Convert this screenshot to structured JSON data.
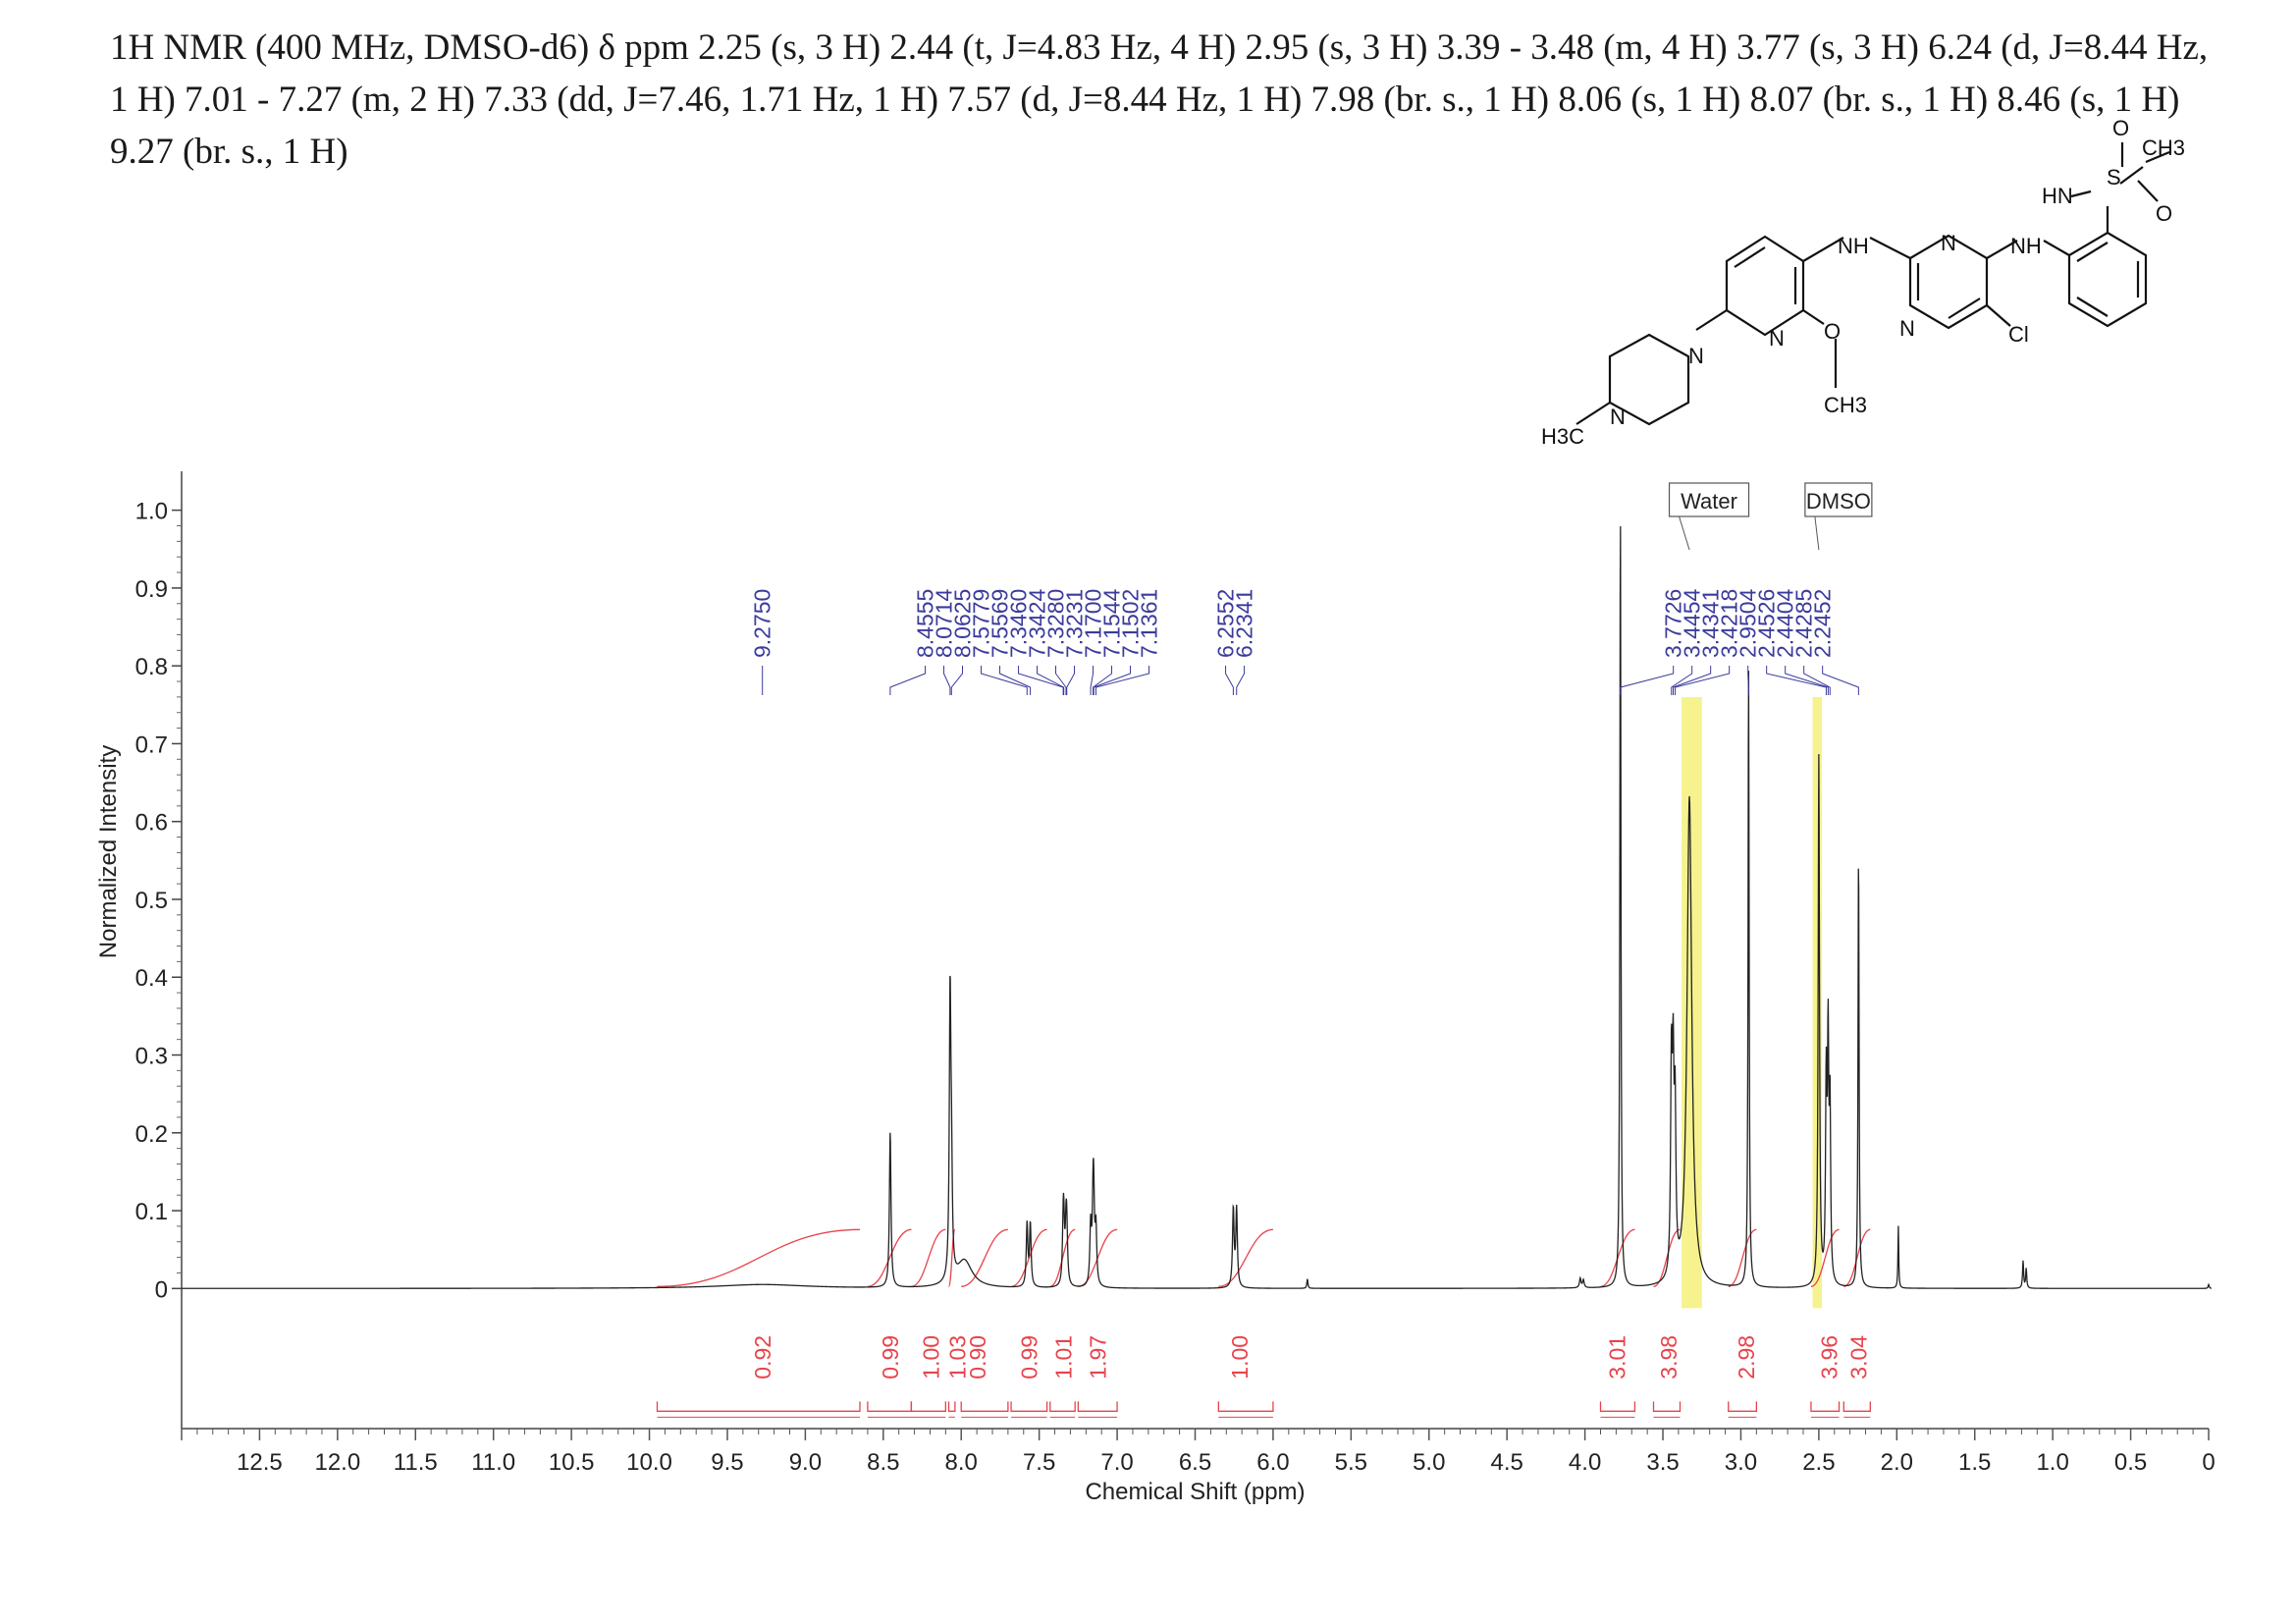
{
  "header": {
    "text": "1H NMR (400 MHz, DMSO-d6) δ ppm 2.25 (s, 3 H) 2.44 (t, J=4.83 Hz, 4 H) 2.95 (s, 3 H) 3.39 - 3.48 (m, 4 H) 3.77 (s, 3 H) 6.24 (d, J=8.44 Hz, 1 H) 7.01 - 7.27 (m, 2 H) 7.33 (dd, J=7.46, 1.71 Hz, 1 H) 7.57 (d, J=8.44 Hz, 1 H) 7.98 (br. s., 1 H) 8.06 (s, 1 H) 8.07 (br. s., 1 H) 8.46 (s, 1 H) 9.27 (br. s., 1 H)"
  },
  "molecule": {
    "labels": [
      "CH3",
      "O",
      "S",
      "O",
      "HN",
      "NH",
      "NH",
      "N",
      "N",
      "N",
      "N",
      "O",
      "CH3",
      "Cl",
      "N",
      "H3C"
    ]
  },
  "colors": {
    "spectrum": "#222222",
    "peak_labels": "#3b3b9c",
    "integrals": "#e8434b",
    "solvent_highlight": "#f5f07a",
    "axis": "#444444"
  },
  "chart_data": {
    "type": "line",
    "xlabel": "Chemical Shift (ppm)",
    "ylabel": "Normalized Intensity",
    "xlim": [
      13.0,
      0
    ],
    "ylim": [
      -0.18,
      1.05
    ],
    "x_ticks": [
      12.5,
      12.0,
      11.5,
      11.0,
      10.5,
      10.0,
      9.5,
      9.0,
      8.5,
      8.0,
      7.5,
      7.0,
      6.5,
      6.0,
      5.5,
      5.0,
      4.5,
      4.0,
      3.5,
      3.0,
      2.5,
      2.0,
      1.5,
      1.0,
      0.5,
      0
    ],
    "x_tick_labels": [
      "12.5",
      "12.0",
      "11.5",
      "11.0",
      "10.5",
      "10.0",
      "9.5",
      "9.0",
      "8.5",
      "8.0",
      "7.5",
      "7.0",
      "6.5",
      "6.0",
      "5.5",
      "5.0",
      "4.5",
      "4.0",
      "3.5",
      "3.0",
      "2.5",
      "2.0",
      "1.5",
      "1.0",
      "0.5",
      "0"
    ],
    "y_ticks": [
      0,
      0.1,
      0.2,
      0.3,
      0.4,
      0.5,
      0.6,
      0.7,
      0.8,
      0.9,
      1.0
    ],
    "y_tick_labels": [
      "0",
      "0.1",
      "0.2",
      "0.3",
      "0.4",
      "0.5",
      "0.6",
      "0.7",
      "0.8",
      "0.9",
      "1.0"
    ],
    "peaks": [
      {
        "ppm": 9.275,
        "height": 0.005,
        "width": 0.35
      },
      {
        "ppm": 8.4555,
        "height": 0.2,
        "width": 0.006
      },
      {
        "ppm": 8.0714,
        "height": 0.36,
        "width": 0.006
      },
      {
        "ppm": 8.0625,
        "height": 0.12,
        "width": 0.006
      },
      {
        "ppm": 7.98,
        "height": 0.035,
        "width": 0.06
      },
      {
        "ppm": 7.5779,
        "height": 0.08,
        "width": 0.006
      },
      {
        "ppm": 7.5569,
        "height": 0.08,
        "width": 0.006
      },
      {
        "ppm": 7.346,
        "height": 0.06,
        "width": 0.006
      },
      {
        "ppm": 7.3424,
        "height": 0.06,
        "width": 0.006
      },
      {
        "ppm": 7.328,
        "height": 0.06,
        "width": 0.006
      },
      {
        "ppm": 7.3231,
        "height": 0.06,
        "width": 0.006
      },
      {
        "ppm": 7.17,
        "height": 0.075,
        "width": 0.006
      },
      {
        "ppm": 7.1544,
        "height": 0.09,
        "width": 0.006
      },
      {
        "ppm": 7.1502,
        "height": 0.08,
        "width": 0.006
      },
      {
        "ppm": 7.1361,
        "height": 0.07,
        "width": 0.006
      },
      {
        "ppm": 6.2552,
        "height": 0.1,
        "width": 0.006
      },
      {
        "ppm": 6.2341,
        "height": 0.1,
        "width": 0.006
      },
      {
        "ppm": 5.78,
        "height": 0.012,
        "width": 0.004
      },
      {
        "ppm": 4.03,
        "height": 0.012,
        "width": 0.006
      },
      {
        "ppm": 4.01,
        "height": 0.01,
        "width": 0.006
      },
      {
        "ppm": 3.7726,
        "height": 1.0,
        "width": 0.004
      },
      {
        "ppm": 3.4454,
        "height": 0.26,
        "width": 0.006
      },
      {
        "ppm": 3.4341,
        "height": 0.24,
        "width": 0.006
      },
      {
        "ppm": 3.4218,
        "height": 0.2,
        "width": 0.006
      },
      {
        "ppm": 3.33,
        "height": 0.63,
        "width": 0.018
      },
      {
        "ppm": 2.9504,
        "height": 0.8,
        "width": 0.004
      },
      {
        "ppm": 2.5,
        "height": 0.68,
        "width": 0.005
      },
      {
        "ppm": 2.4526,
        "height": 0.25,
        "width": 0.005
      },
      {
        "ppm": 2.4404,
        "height": 0.3,
        "width": 0.005
      },
      {
        "ppm": 2.4285,
        "height": 0.22,
        "width": 0.005
      },
      {
        "ppm": 2.2452,
        "height": 0.56,
        "width": 0.004
      },
      {
        "ppm": 1.99,
        "height": 0.08,
        "width": 0.003
      },
      {
        "ppm": 1.19,
        "height": 0.035,
        "width": 0.004
      },
      {
        "ppm": 1.17,
        "height": 0.025,
        "width": 0.004
      },
      {
        "ppm": 0.0,
        "height": 0.005,
        "width": 0.004
      }
    ],
    "peak_labels": [
      {
        "text": "9.2750",
        "ppm": 9.275
      },
      {
        "text": "8.4555",
        "ppm": 8.4555
      },
      {
        "text": "8.0714",
        "ppm": 8.0714
      },
      {
        "text": "8.0625",
        "ppm": 8.0625
      },
      {
        "text": "7.5779",
        "ppm": 7.5779
      },
      {
        "text": "7.5569",
        "ppm": 7.5569
      },
      {
        "text": "7.3460",
        "ppm": 7.346
      },
      {
        "text": "7.3424",
        "ppm": 7.3424
      },
      {
        "text": "7.3280",
        "ppm": 7.328
      },
      {
        "text": "7.3231",
        "ppm": 7.3231
      },
      {
        "text": "7.1700",
        "ppm": 7.17
      },
      {
        "text": "7.1544",
        "ppm": 7.1544
      },
      {
        "text": "7.1502",
        "ppm": 7.1502
      },
      {
        "text": "7.1361",
        "ppm": 7.1361
      },
      {
        "text": "6.2552",
        "ppm": 6.2552
      },
      {
        "text": "6.2341",
        "ppm": 6.2341
      },
      {
        "text": "3.7726",
        "ppm": 3.7726
      },
      {
        "text": "3.4454",
        "ppm": 3.4454
      },
      {
        "text": "3.4341",
        "ppm": 3.4341
      },
      {
        "text": "3.4218",
        "ppm": 3.4218
      },
      {
        "text": "2.9504",
        "ppm": 2.9504
      },
      {
        "text": "2.4526",
        "ppm": 2.4526
      },
      {
        "text": "2.4404",
        "ppm": 2.4404
      },
      {
        "text": "2.4285",
        "ppm": 2.4285
      },
      {
        "text": "2.2452",
        "ppm": 2.2452
      }
    ],
    "integrals": [
      {
        "value": "0.92",
        "from": 9.95,
        "to": 8.65,
        "center": 9.28
      },
      {
        "value": "0.99",
        "from": 8.6,
        "to": 8.32,
        "center": 8.46
      },
      {
        "value": "1.00",
        "from": 8.32,
        "to": 8.1,
        "center": 8.2
      },
      {
        "value": "1.03",
        "from": 8.08,
        "to": 8.04,
        "center": 8.03
      },
      {
        "value": "0.90",
        "from": 8.0,
        "to": 7.7,
        "center": 7.9
      },
      {
        "value": "0.99",
        "from": 7.68,
        "to": 7.45,
        "center": 7.57
      },
      {
        "value": "1.01",
        "from": 7.43,
        "to": 7.27,
        "center": 7.35
      },
      {
        "value": "1.97",
        "from": 7.25,
        "to": 7.0,
        "center": 7.13
      },
      {
        "value": "1.00",
        "from": 6.35,
        "to": 6.0,
        "center": 6.22
      },
      {
        "value": "3.01",
        "from": 3.9,
        "to": 3.68,
        "center": 3.8
      },
      {
        "value": "3.98",
        "from": 3.56,
        "to": 3.39,
        "center": 3.47
      },
      {
        "value": "2.98",
        "from": 3.08,
        "to": 2.9,
        "center": 2.97
      },
      {
        "value": "3.96",
        "from": 2.55,
        "to": 2.37,
        "center": 2.44
      },
      {
        "value": "3.04",
        "from": 2.34,
        "to": 2.17,
        "center": 2.25
      }
    ],
    "annotations": [
      {
        "text": "Water",
        "ppm": 3.33
      },
      {
        "text": "DMSO",
        "ppm": 2.5
      }
    ],
    "highlights": [
      {
        "from": 3.38,
        "to": 3.25
      },
      {
        "from": 2.54,
        "to": 2.48
      }
    ]
  }
}
